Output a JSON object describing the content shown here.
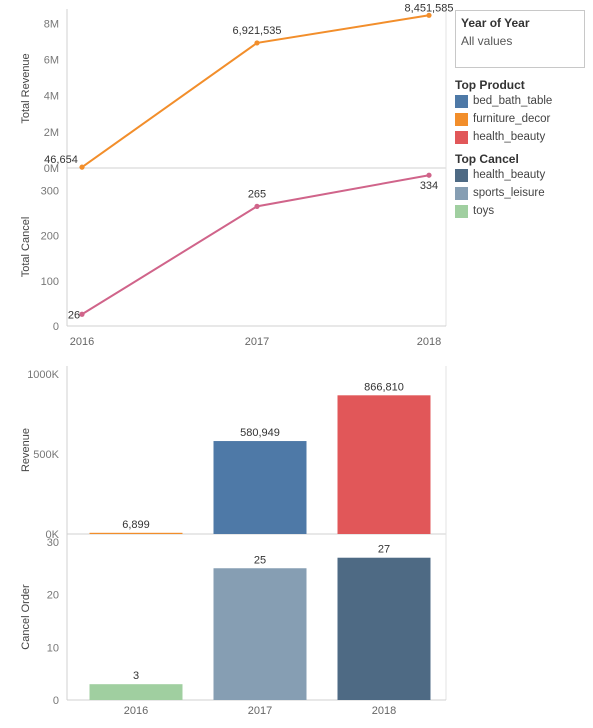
{
  "filter": {
    "title": "Year of Year",
    "value": "All values"
  },
  "legend_product": {
    "title": "Top Product",
    "items": [
      {
        "label": "bed_bath_table",
        "color": "#4e79a7"
      },
      {
        "label": "furniture_decor",
        "color": "#f28e2b"
      },
      {
        "label": "health_beauty",
        "color": "#e15759"
      }
    ]
  },
  "legend_cancel": {
    "title": "Top Cancel",
    "items": [
      {
        "label": "health_beauty",
        "color": "#4e6a84"
      },
      {
        "label": "sports_leisure",
        "color": "#869eb3"
      },
      {
        "label": "toys",
        "color": "#a0cfa0"
      }
    ]
  },
  "chart_data": [
    {
      "type": "line",
      "x": [
        "2016",
        "2017",
        "2018"
      ],
      "values": [
        46654,
        6921535,
        8451585
      ],
      "data_labels": [
        "46,654",
        "6,921,535",
        "8,451,585"
      ],
      "ylabel": "Total Revenue",
      "ylim": [
        0,
        8800000
      ],
      "ticks": [
        0,
        2000000,
        4000000,
        6000000,
        8000000
      ],
      "tick_labels": [
        "0M",
        "2M",
        "4M",
        "6M",
        "8M"
      ],
      "color": "#f28e2b"
    },
    {
      "type": "line",
      "x": [
        "2016",
        "2017",
        "2018"
      ],
      "values": [
        26,
        265,
        334
      ],
      "data_labels": [
        "26",
        "265",
        "334"
      ],
      "ylabel": "Total Cancel",
      "ylim": [
        0,
        350
      ],
      "ticks": [
        0,
        100,
        200,
        300
      ],
      "tick_labels": [
        "0",
        "100",
        "200",
        "300"
      ],
      "x_tick_labels": [
        "2016",
        "2017",
        "2018"
      ],
      "color": "#d0648a"
    },
    {
      "type": "bar",
      "categories": [
        "2016",
        "2017",
        "2018"
      ],
      "values": [
        6899,
        580949,
        866810
      ],
      "data_labels": [
        "6,899",
        "580,949",
        "866,810"
      ],
      "colors": [
        "#f28e2b",
        "#4e79a7",
        "#e15759"
      ],
      "ylabel": "Revenue",
      "ylim": [
        0,
        1050000
      ],
      "ticks": [
        0,
        500000,
        1000000
      ],
      "tick_labels": [
        "0K",
        "500K",
        "1000K"
      ]
    },
    {
      "type": "bar",
      "categories": [
        "2016",
        "2017",
        "2018"
      ],
      "values": [
        3,
        25,
        27
      ],
      "data_labels": [
        "3",
        "25",
        "27"
      ],
      "colors": [
        "#a0cfa0",
        "#869eb3",
        "#4e6a84"
      ],
      "ylabel": "Cancel Order",
      "ylim": [
        0,
        31.5
      ],
      "ticks": [
        0,
        10,
        20,
        30
      ],
      "tick_labels": [
        "0",
        "10",
        "20",
        "30"
      ],
      "x_tick_labels": [
        "2016",
        "2017",
        "2018"
      ]
    }
  ]
}
